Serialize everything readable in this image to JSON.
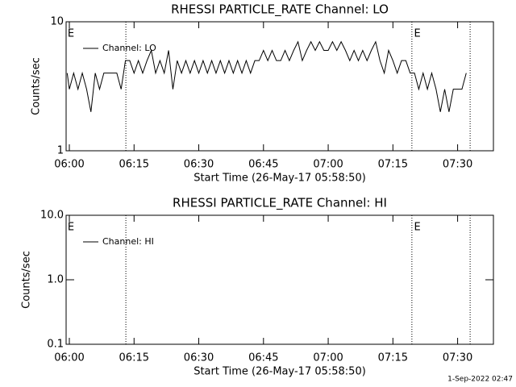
{
  "chart_data": [
    {
      "type": "line",
      "title": "RHESSI PARTICLE_RATE Channel: LO",
      "x_label": "Start Time (26-May-17 05:58:50)",
      "y_label": "Counts/sec",
      "log_y": true,
      "xlim": [
        -0.75,
        98.3
      ],
      "ylim": [
        1,
        10
      ],
      "yticks": [
        1,
        10
      ],
      "xticks": [
        {
          "value": 0,
          "label": "06:00"
        },
        {
          "value": 15,
          "label": "06:15"
        },
        {
          "value": 30,
          "label": "06:30"
        },
        {
          "value": 45,
          "label": "06:45"
        },
        {
          "value": 60,
          "label": "07:00"
        },
        {
          "value": 75,
          "label": "07:15"
        },
        {
          "value": 90,
          "label": "07:30"
        }
      ],
      "event_lines": [
        13.1,
        79.4,
        92.9
      ],
      "annotations": [
        {
          "x": -0.4,
          "text": "E"
        },
        {
          "x": 79.9,
          "text": "E"
        }
      ],
      "x": [
        -0.5,
        0,
        1,
        2,
        3,
        4,
        5,
        6,
        7,
        8,
        9,
        10,
        11,
        12,
        13,
        14,
        15,
        16,
        17,
        18,
        19,
        20,
        21,
        22,
        23,
        24,
        25,
        26,
        27,
        28,
        29,
        30,
        31,
        32,
        33,
        34,
        35,
        36,
        37,
        38,
        39,
        40,
        41,
        42,
        43,
        44,
        45,
        46,
        47,
        48,
        49,
        50,
        51,
        52,
        53,
        54,
        55,
        56,
        57,
        58,
        59,
        60,
        61,
        62,
        63,
        64,
        65,
        66,
        67,
        68,
        69,
        70,
        71,
        72,
        73,
        74,
        75,
        76,
        77,
        78,
        79,
        80,
        81,
        82,
        83,
        84,
        85,
        86,
        87,
        88,
        89,
        90,
        91,
        92
      ],
      "series": [
        {
          "name": "Channel: LO",
          "color": "#000000",
          "values": [
            4,
            3,
            4,
            3,
            4,
            3,
            2,
            4,
            3,
            4,
            4,
            4,
            4,
            3,
            5,
            5,
            4,
            5,
            4,
            5,
            6,
            4,
            5,
            4,
            6,
            3,
            5,
            4,
            5,
            4,
            5,
            4,
            5,
            4,
            5,
            4,
            5,
            4,
            5,
            4,
            5,
            4,
            5,
            4,
            5,
            5,
            6,
            5,
            6,
            5,
            5,
            6,
            5,
            6,
            7,
            5,
            6,
            7,
            6,
            7,
            6,
            6,
            7,
            6,
            7,
            6,
            5,
            6,
            5,
            6,
            5,
            6,
            7,
            5,
            4,
            6,
            5,
            4,
            5,
            5,
            4,
            4,
            3,
            4,
            3,
            4,
            3,
            2,
            3,
            2,
            3,
            3,
            3,
            4
          ]
        }
      ]
    },
    {
      "type": "line",
      "title": "RHESSI PARTICLE_RATE Channel: HI",
      "x_label": "Start Time (26-May-17 05:58:50)",
      "y_label": "Counts/sec",
      "log_y": true,
      "xlim": [
        -0.75,
        98.3
      ],
      "ylim": [
        0.1,
        10
      ],
      "yticks": [
        0.1,
        {
          "value": 1,
          "label": "1.0"
        },
        {
          "value": 10,
          "label": "10.0"
        }
      ],
      "xticks": [
        {
          "value": 0,
          "label": "06:00"
        },
        {
          "value": 15,
          "label": "06:15"
        },
        {
          "value": 30,
          "label": "06:30"
        },
        {
          "value": 45,
          "label": "06:45"
        },
        {
          "value": 60,
          "label": "07:00"
        },
        {
          "value": 75,
          "label": "07:15"
        },
        {
          "value": 90,
          "label": "07:30"
        }
      ],
      "event_lines": [
        13.1,
        79.4,
        92.9
      ],
      "annotations": [
        {
          "x": -0.4,
          "text": "E"
        },
        {
          "x": 79.9,
          "text": "E"
        }
      ],
      "x": [],
      "series": [
        {
          "name": "Channel: HI",
          "color": "#000000",
          "values": []
        }
      ]
    }
  ],
  "footer": "1-Sep-2022 02:47"
}
